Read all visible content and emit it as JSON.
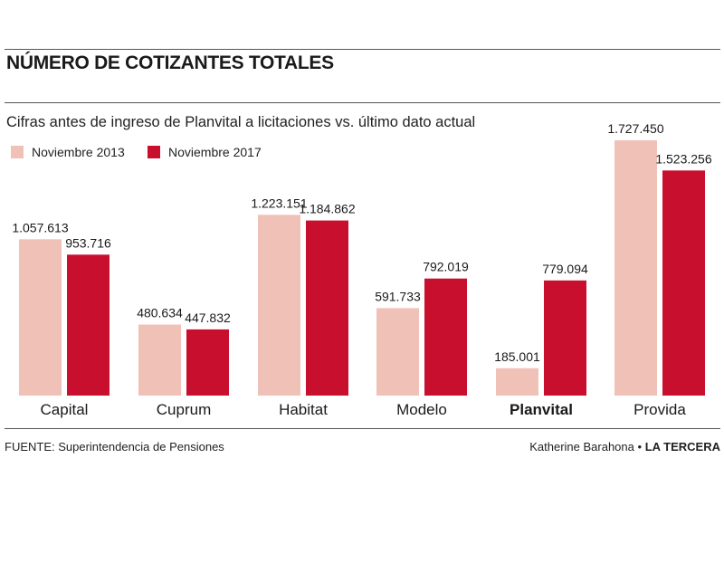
{
  "title": "NÚMERO DE COTIZANTES TOTALES",
  "subtitle": "Cifras antes de ingreso de Planvital a licitaciones vs. último dato actual",
  "colors": {
    "nov2013": "#f0c1b6",
    "nov2017": "#c8102e",
    "rule": "#555555"
  },
  "chart_data": {
    "type": "bar",
    "categories": [
      "Capital",
      "Cuprum",
      "Habitat",
      "Modelo",
      "Planvital",
      "Provida"
    ],
    "highlight_category": "Planvital",
    "series": [
      {
        "name": "Noviembre 2013",
        "values": [
          1057613,
          480634,
          1223151,
          591733,
          185001,
          1727450
        ],
        "labels": [
          "1.057.613",
          "480.634",
          "1.223.151",
          "591.733",
          "185.001",
          "1.727.450"
        ]
      },
      {
        "name": "Noviembre 2017",
        "values": [
          953716,
          447832,
          1184862,
          792019,
          779094,
          1523256
        ],
        "labels": [
          "953.716",
          "447.832",
          "1.184.862",
          "792.019",
          "779.094",
          "1.523.256"
        ]
      }
    ],
    "ylim": [
      0,
      1800000
    ],
    "grid": false,
    "legend": "top-left"
  },
  "footer": {
    "source": "FUENTE: Superintendencia de Pensiones",
    "author": "Katherine Barahona",
    "separator": "•",
    "outlet": "LA TERCERA"
  }
}
